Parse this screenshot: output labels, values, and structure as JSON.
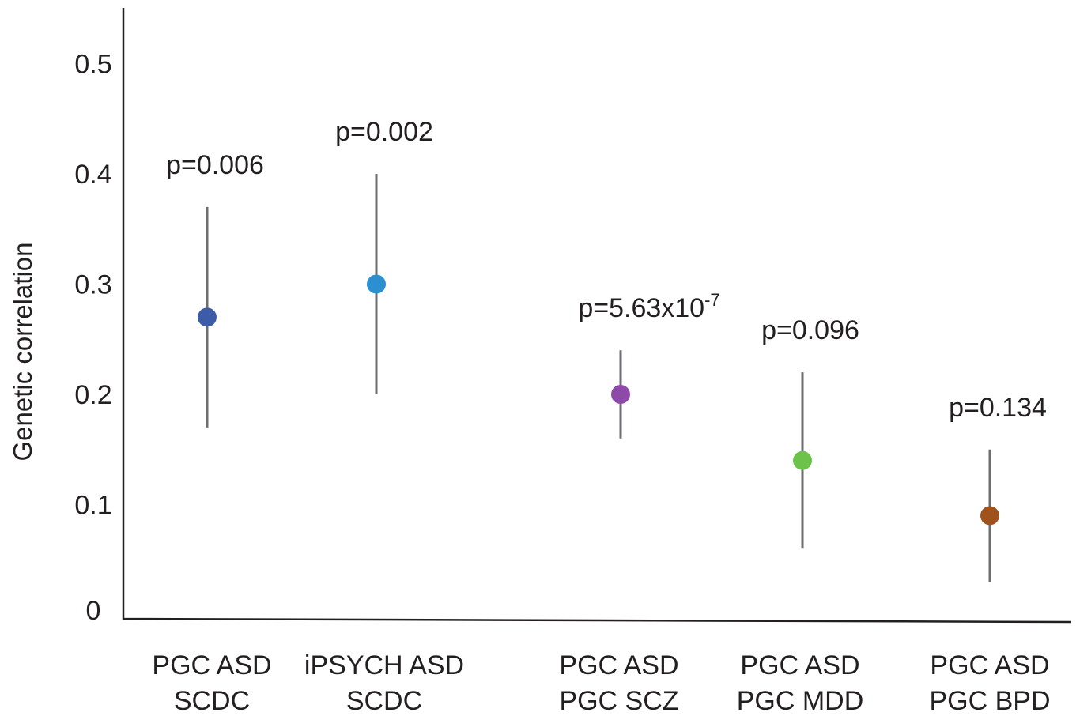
{
  "chart_data": {
    "type": "scatter",
    "title": "",
    "xlabel": "",
    "ylabel": "Genetic correlation",
    "ylim": [
      0,
      0.55
    ],
    "yticks": [
      {
        "value": 0,
        "label": "0"
      },
      {
        "value": 0.1,
        "label": "0.1"
      },
      {
        "value": 0.2,
        "label": "0.2"
      },
      {
        "value": 0.3,
        "label": "0.3"
      },
      {
        "value": 0.4,
        "label": "0.4"
      },
      {
        "value": 0.5,
        "label": "0.5"
      }
    ],
    "grid": false,
    "legend": "none",
    "points": [
      {
        "label_line1": "PGC ASD",
        "label_line2": "SCDC",
        "value": 0.27,
        "lower": 0.17,
        "upper": 0.37,
        "p_prefix": "p=0.006",
        "p_exponent": "",
        "color": "#3d5ca8"
      },
      {
        "label_line1": "iPSYCH ASD",
        "label_line2": "SCDC",
        "value": 0.3,
        "lower": 0.2,
        "upper": 0.4,
        "p_prefix": "p=0.002",
        "p_exponent": "",
        "color": "#2b8fd0"
      },
      {
        "label_line1": "PGC ASD",
        "label_line2": "PGC SCZ",
        "value": 0.2,
        "lower": 0.16,
        "upper": 0.24,
        "p_prefix": "p=5.63x10",
        "p_exponent": "-7",
        "color": "#8e4aa8"
      },
      {
        "label_line1": "PGC ASD",
        "label_line2": "PGC MDD",
        "value": 0.14,
        "lower": 0.06,
        "upper": 0.22,
        "p_prefix": "p=0.096",
        "p_exponent": "",
        "color": "#6cc24a"
      },
      {
        "label_line1": "PGC ASD",
        "label_line2": "PGC BPD",
        "value": 0.09,
        "lower": 0.03,
        "upper": 0.15,
        "p_prefix": "p=0.134",
        "p_exponent": "",
        "color": "#a0521d"
      }
    ]
  }
}
